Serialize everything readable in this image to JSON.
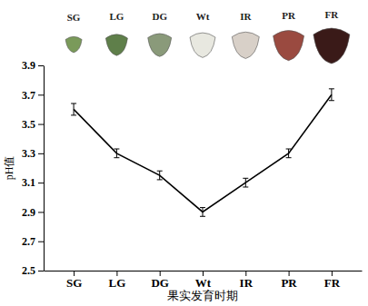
{
  "chart_data": {
    "type": "line",
    "x_label": "果实发育时期",
    "y_label": "pH值",
    "categories": [
      "SG",
      "LG",
      "DG",
      "Wt",
      "IR",
      "PR",
      "FR"
    ],
    "values": [
      3.6,
      3.3,
      3.15,
      2.9,
      3.1,
      3.3,
      3.7
    ],
    "errors": [
      0.04,
      0.03,
      0.03,
      0.03,
      0.03,
      0.03,
      0.04
    ],
    "color": "#000000",
    "ylim": [
      2.5,
      3.9
    ],
    "yticks": [
      2.5,
      2.7,
      2.9,
      3.1,
      3.3,
      3.5,
      3.7,
      3.9
    ],
    "grid": false
  }
}
